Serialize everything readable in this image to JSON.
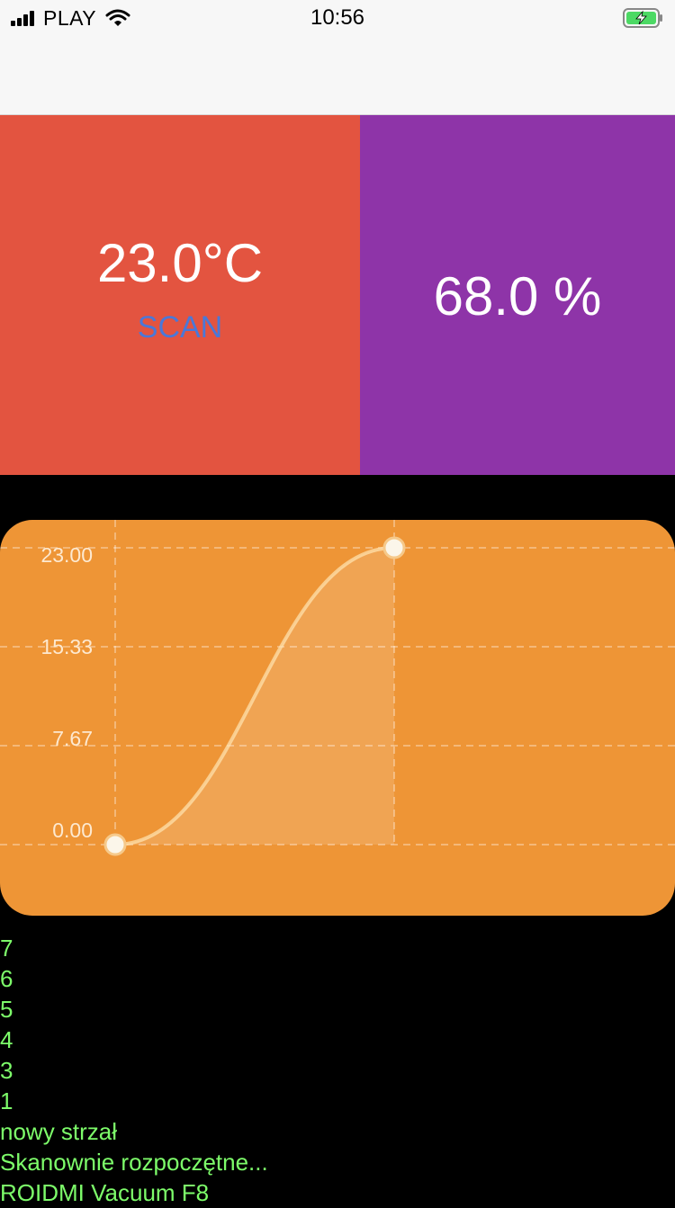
{
  "status_bar": {
    "carrier": "PLAY",
    "time": "10:56"
  },
  "temperature": {
    "value": "23.0°C",
    "scan_label": "SCAN",
    "color": "#e35440"
  },
  "humidity": {
    "value": "68.0 %",
    "color": "#8e34a8"
  },
  "chart_data": {
    "type": "area",
    "x": [
      0,
      1
    ],
    "values": [
      0.0,
      23.0
    ],
    "ylim": [
      0,
      23.0
    ],
    "y_ticks": [
      "0.00",
      "7.67",
      "15.33",
      "23.00"
    ],
    "grid": true,
    "color": "#ee9536"
  },
  "log": {
    "lines": [
      "7",
      "6",
      "5",
      "4",
      "3",
      "1",
      "nowy strzał",
      "Skanownie rozpoczętne...",
      "ROIDMI Vacuum F8"
    ]
  }
}
